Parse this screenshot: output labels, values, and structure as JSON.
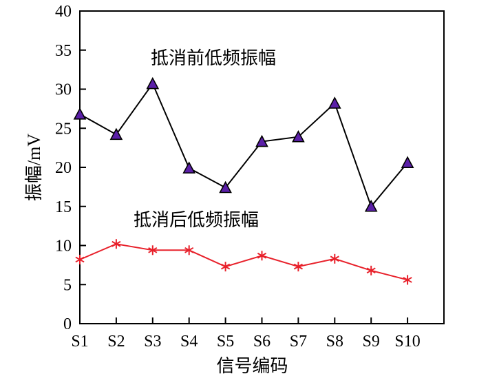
{
  "chart_data": {
    "type": "line",
    "title": "",
    "xlabel": "信号编码",
    "ylabel": "振幅/mV",
    "categories": [
      "S1",
      "S2",
      "S3",
      "S4",
      "S5",
      "S6",
      "S7",
      "S8",
      "S9",
      "S10"
    ],
    "ylim": [
      0,
      40
    ],
    "yticks": [
      0,
      5,
      10,
      15,
      20,
      25,
      30,
      35,
      40
    ],
    "grid": false,
    "series": [
      {
        "name": "抵消前低频振幅",
        "marker": "triangle",
        "line_color": "#000000",
        "marker_fill": "#5b1fa8",
        "values": [
          26.8,
          24.2,
          30.7,
          19.9,
          17.4,
          23.3,
          23.9,
          28.2,
          15.0,
          20.6
        ]
      },
      {
        "name": "抵消后低频振幅",
        "marker": "asterisk",
        "line_color": "#e8202a",
        "marker_fill": "#e8202a",
        "values": [
          8.2,
          10.2,
          9.4,
          9.4,
          7.3,
          8.7,
          7.3,
          8.3,
          6.8,
          5.6
        ]
      }
    ],
    "annotations": [
      {
        "text": "抵消前低频振幅",
        "series": 0
      },
      {
        "text": "抵消后低频振幅",
        "series": 1
      }
    ]
  }
}
